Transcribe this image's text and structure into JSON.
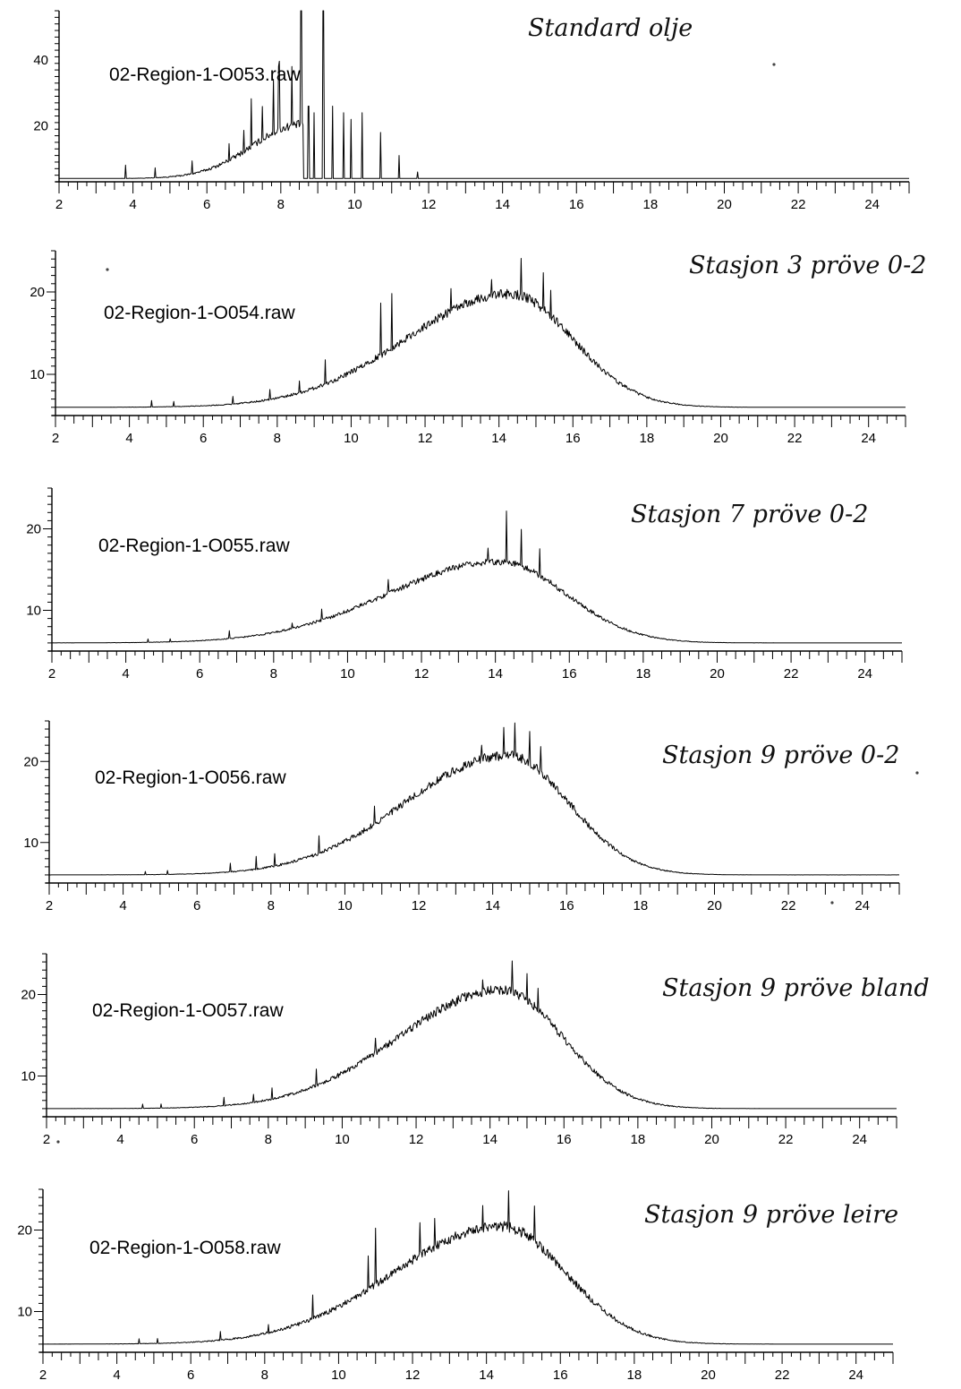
{
  "chart_data": [
    {
      "type": "line",
      "label": "02-Region-1-O053.raw",
      "note": "Standard olje",
      "xlim": [
        2,
        25
      ],
      "x_ticks": [
        "2",
        "4",
        "6",
        "8",
        "10",
        "12",
        "14",
        "16",
        "18",
        "20",
        "22",
        "24"
      ],
      "y_ticks": [
        {
          "value": 40,
          "label": "40"
        },
        {
          "value": 20,
          "label": "20"
        }
      ],
      "ylim": [
        3,
        55
      ],
      "baseline": 4,
      "hump": {
        "center": 8.6,
        "width": 1.35,
        "height": 16,
        "skew": 0
      },
      "noise": 2.5,
      "peaks": [
        [
          3.8,
          4
        ],
        [
          4.6,
          3
        ],
        [
          5.6,
          4
        ],
        [
          6.6,
          5
        ],
        [
          7.0,
          6
        ],
        [
          7.2,
          14
        ],
        [
          7.5,
          10
        ],
        [
          7.8,
          17
        ],
        [
          7.95,
          20
        ],
        [
          8.3,
          18
        ],
        [
          8.55,
          55
        ],
        [
          8.75,
          22
        ],
        [
          8.9,
          20
        ],
        [
          9.15,
          55
        ],
        [
          9.4,
          22
        ],
        [
          9.7,
          20
        ],
        [
          9.9,
          18
        ],
        [
          10.2,
          20
        ],
        [
          10.7,
          14
        ],
        [
          11.2,
          7
        ],
        [
          11.7,
          2
        ]
      ]
    },
    {
      "type": "line",
      "label": "02-Region-1-O054.raw",
      "note": "Stasjon 3  pröve 0-2",
      "xlim": [
        2,
        25
      ],
      "x_ticks": [
        "2",
        "4",
        "6",
        "8",
        "10",
        "12",
        "14",
        "16",
        "18",
        "20",
        "22",
        "24"
      ],
      "y_ticks": [
        {
          "value": 20,
          "label": "20"
        },
        {
          "value": 10,
          "label": "10"
        }
      ],
      "ylim": [
        5,
        25
      ],
      "baseline": 6,
      "hump": {
        "center": 14.3,
        "width": 2.8,
        "height": 13.5,
        "skew": 0.6
      },
      "noise": 1.2,
      "peaks": [
        [
          4.6,
          0.8
        ],
        [
          5.2,
          0.6
        ],
        [
          6.8,
          1
        ],
        [
          7.8,
          1.2
        ],
        [
          8.6,
          1.5
        ],
        [
          9.3,
          3
        ],
        [
          10.8,
          6
        ],
        [
          11.1,
          7
        ],
        [
          12.7,
          2.5
        ],
        [
          13.8,
          2.5
        ],
        [
          14.6,
          5
        ],
        [
          15.2,
          4
        ],
        [
          15.4,
          3
        ]
      ]
    },
    {
      "type": "line",
      "label": "02-Region-1-O055.raw",
      "note": "Stasjon 7  pröve 0-2",
      "xlim": [
        2,
        25
      ],
      "x_ticks": [
        "2",
        "4",
        "6",
        "8",
        "10",
        "12",
        "14",
        "16",
        "18",
        "20",
        "22",
        "24"
      ],
      "y_ticks": [
        {
          "value": 20,
          "label": "20"
        },
        {
          "value": 10,
          "label": "10"
        }
      ],
      "ylim": [
        5,
        25
      ],
      "baseline": 6,
      "hump": {
        "center": 14.1,
        "width": 3.0,
        "height": 9.8,
        "skew": 0.6
      },
      "noise": 0.8,
      "peaks": [
        [
          4.6,
          0.4
        ],
        [
          5.2,
          0.4
        ],
        [
          6.8,
          1
        ],
        [
          8.5,
          0.8
        ],
        [
          9.3,
          1.5
        ],
        [
          11.1,
          1.5
        ],
        [
          13.8,
          1.8
        ],
        [
          14.3,
          6.5
        ],
        [
          14.7,
          4.5
        ],
        [
          15.2,
          3
        ]
      ]
    },
    {
      "type": "line",
      "label": "02-Region-1-O056.raw",
      "note": "Stasjon 9  pröve 0-2",
      "xlim": [
        2,
        25
      ],
      "x_ticks": [
        "2",
        "4",
        "6",
        "8",
        "10",
        "12",
        "14",
        "16",
        "18",
        "20",
        "22",
        "24"
      ],
      "y_ticks": [
        {
          "value": 20,
          "label": "20"
        },
        {
          "value": 10,
          "label": "10"
        }
      ],
      "ylim": [
        5,
        25
      ],
      "baseline": 6,
      "hump": {
        "center": 14.4,
        "width": 2.75,
        "height": 14.5,
        "skew": 0.6
      },
      "noise": 1.2,
      "peaks": [
        [
          4.6,
          0.4
        ],
        [
          5.2,
          0.5
        ],
        [
          6.9,
          1
        ],
        [
          7.6,
          1.5
        ],
        [
          8.1,
          1.5
        ],
        [
          9.3,
          2
        ],
        [
          10.8,
          2
        ],
        [
          13.7,
          2
        ],
        [
          14.3,
          3
        ],
        [
          14.6,
          4
        ],
        [
          15.0,
          3.5
        ],
        [
          15.3,
          3
        ]
      ]
    },
    {
      "type": "line",
      "label": "02-Region-1-O057.raw",
      "note": "Stasjon 9  pröve bland",
      "xlim": [
        2,
        25
      ],
      "x_ticks": [
        "2",
        "4",
        "6",
        "8",
        "10",
        "12",
        "14",
        "16",
        "18",
        "20",
        "22",
        "24"
      ],
      "y_ticks": [
        {
          "value": 20,
          "label": "20"
        },
        {
          "value": 10,
          "label": "10"
        }
      ],
      "ylim": [
        5,
        25
      ],
      "baseline": 6,
      "hump": {
        "center": 14.3,
        "width": 2.75,
        "height": 14.3,
        "skew": 0.6
      },
      "noise": 1.2,
      "peaks": [
        [
          4.6,
          0.5
        ],
        [
          5.1,
          0.5
        ],
        [
          6.8,
          1
        ],
        [
          7.6,
          1
        ],
        [
          8.1,
          1.5
        ],
        [
          9.3,
          2
        ],
        [
          10.9,
          1.5
        ],
        [
          13.8,
          2
        ],
        [
          14.6,
          4
        ],
        [
          15.0,
          3.5
        ],
        [
          15.3,
          3
        ]
      ]
    },
    {
      "type": "line",
      "label": "02-Region-1-O058.raw",
      "note": "Stasjon 9  pröve leire",
      "xlim": [
        2,
        25
      ],
      "x_ticks": [
        "2",
        "4",
        "6",
        "8",
        "10",
        "12",
        "14",
        "16",
        "18",
        "20",
        "22",
        "24"
      ],
      "y_ticks": [
        {
          "value": 20,
          "label": "20"
        },
        {
          "value": 10,
          "label": "10"
        }
      ],
      "ylim": [
        5,
        25
      ],
      "baseline": 6,
      "hump": {
        "center": 14.4,
        "width": 2.9,
        "height": 14.2,
        "skew": 0.6
      },
      "noise": 1.3,
      "peaks": [
        [
          4.6,
          0.6
        ],
        [
          5.1,
          0.6
        ],
        [
          6.8,
          1
        ],
        [
          8.1,
          1
        ],
        [
          9.3,
          3
        ],
        [
          10.8,
          4
        ],
        [
          11.0,
          6.5
        ],
        [
          12.2,
          4
        ],
        [
          12.6,
          3.5
        ],
        [
          13.9,
          3
        ],
        [
          14.6,
          5
        ],
        [
          15.3,
          4
        ]
      ]
    }
  ]
}
